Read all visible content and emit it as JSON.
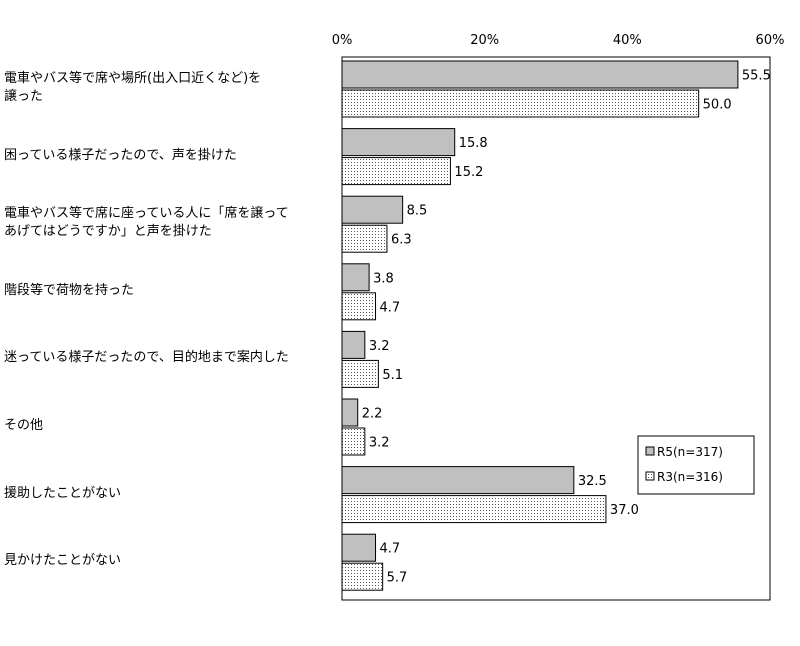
{
  "chart_data": {
    "type": "bar",
    "orientation": "horizontal",
    "categories": [
      "電車やバス等で席や場所(出入口近くなど)を\n譲った",
      "困っている様子だったので、声を掛けた",
      "電車やバス等で席に座っている人に「席を譲って\nあげてはどうですか」と声を掛けた",
      "階段等で荷物を持った",
      "迷っている様子だったので、目的地まで案内した",
      "その他",
      "援助したことがない",
      "見かけたことがない"
    ],
    "series": [
      {
        "name": "R5(n=317)",
        "values": [
          55.5,
          15.8,
          8.5,
          3.8,
          3.2,
          2.2,
          32.5,
          4.7
        ],
        "fill": "#c0c0c0"
      },
      {
        "name": "R3(n=316)",
        "values": [
          50.0,
          15.2,
          6.3,
          4.7,
          5.1,
          3.2,
          37.0,
          5.7
        ],
        "fill": "dotted"
      }
    ],
    "xlim": [
      0,
      60
    ],
    "xticks": [
      "0%",
      "20%",
      "40%",
      "60%"
    ],
    "xtick_values": [
      0,
      20,
      40,
      60
    ],
    "value_format": "1 decimal",
    "legend_position": "right",
    "grid": false
  }
}
